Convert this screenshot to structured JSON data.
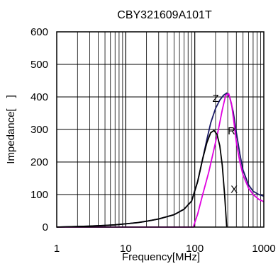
{
  "chart_data": {
    "type": "line",
    "title": "CBY321609A101T",
    "xlabel": "Frequency[MHz]",
    "ylabel": "Impedance[　]",
    "x_scale": "log",
    "xlim": [
      1,
      1000
    ],
    "ylim": [
      0,
      600
    ],
    "x_ticks": [
      1,
      10,
      100,
      1000
    ],
    "x_tick_labels": [
      "1",
      "10",
      "100",
      "1000"
    ],
    "y_ticks": [
      0,
      100,
      200,
      300,
      400,
      500,
      600
    ],
    "y_tick_labels": [
      "0",
      "100",
      "200",
      "300",
      "400",
      "500",
      "600"
    ],
    "grid": true,
    "series": [
      {
        "name": "Z",
        "color": "#1a1a66",
        "x": [
          1,
          2,
          3,
          5,
          7,
          10,
          15,
          20,
          30,
          50,
          70,
          90,
          110,
          130,
          150,
          170,
          200,
          230,
          260,
          290,
          320,
          360,
          400,
          450,
          500,
          600,
          700,
          850,
          1000
        ],
        "y": [
          0,
          2,
          3,
          5,
          7,
          10,
          14,
          18,
          25,
          38,
          55,
          80,
          140,
          210,
          270,
          320,
          365,
          390,
          405,
          412,
          400,
          355,
          290,
          225,
          175,
          130,
          110,
          100,
          95
        ]
      },
      {
        "name": "R",
        "color": "#e000e0",
        "x": [
          1,
          50,
          95,
          110,
          130,
          160,
          190,
          220,
          250,
          280,
          310,
          340,
          370,
          400,
          450,
          500,
          600,
          700,
          850,
          1000
        ],
        "y": [
          0,
          0,
          0,
          40,
          100,
          170,
          240,
          300,
          360,
          405,
          410,
          380,
          320,
          260,
          200,
          160,
          120,
          100,
          85,
          78
        ]
      },
      {
        "name": "X",
        "color": "#000000",
        "x": [
          1,
          2,
          3,
          5,
          7,
          10,
          15,
          20,
          30,
          50,
          70,
          90,
          110,
          130,
          150,
          170,
          190,
          210,
          230,
          250,
          270,
          290
        ],
        "y": [
          0,
          2,
          3,
          5,
          7,
          10,
          14,
          18,
          25,
          38,
          55,
          80,
          140,
          210,
          260,
          290,
          297,
          285,
          250,
          190,
          100,
          0
        ]
      }
    ],
    "annotations": [
      {
        "text": "Z",
        "x": 180,
        "y": 385
      },
      {
        "text": "R",
        "x": 300,
        "y": 285
      },
      {
        "text": "X",
        "x": 330,
        "y": 105
      }
    ]
  }
}
